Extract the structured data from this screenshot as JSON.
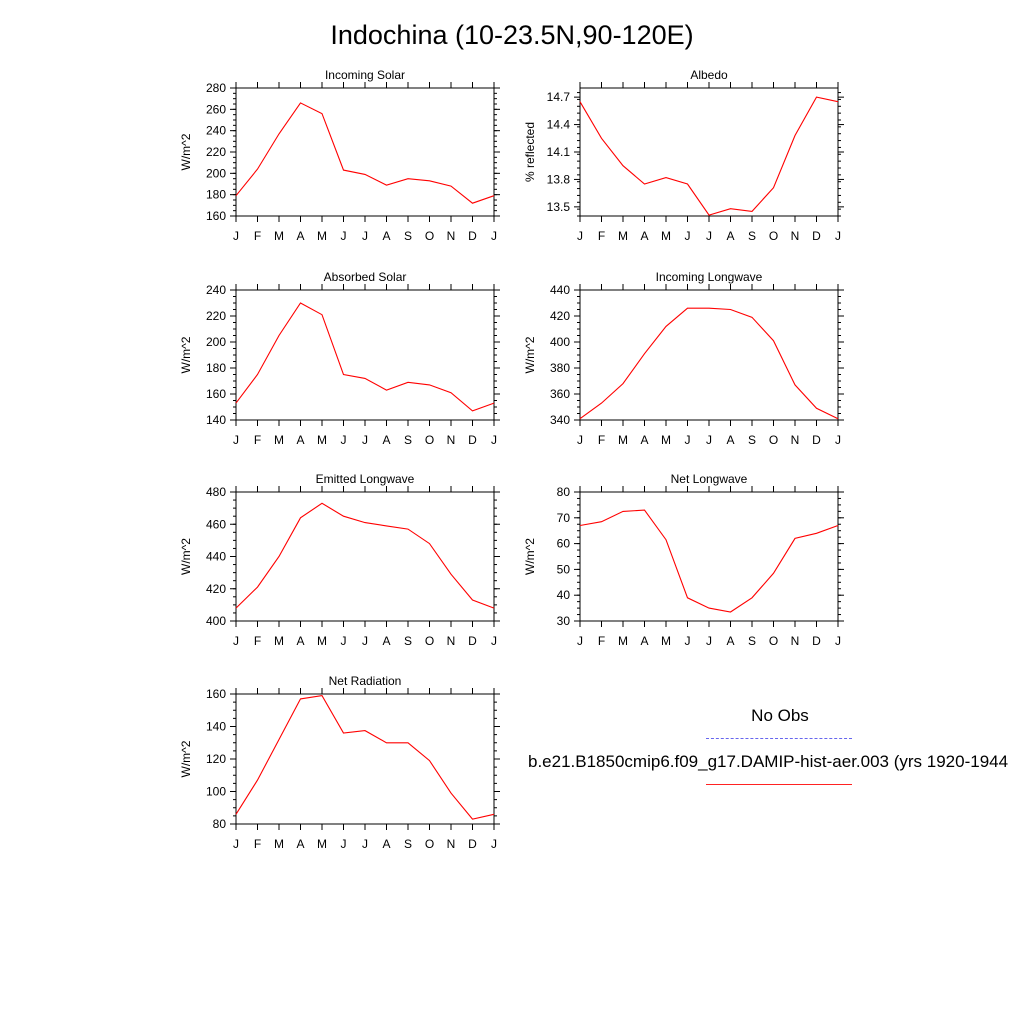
{
  "title": "Indochina (10-23.5N,90-120E)",
  "colors": {
    "model_line": "#ff0000",
    "obs_line": "#6a6aee",
    "axes": "#000000"
  },
  "legend": {
    "obs_label": "No Obs",
    "model_label": "b.e21.B1850cmip6.f09_g17.DAMIP-hist-aer.003 (yrs 1920-1944"
  },
  "chart_data": [
    {
      "type": "line",
      "title": "Incoming Solar",
      "ylabel": "W/m^2",
      "categories": [
        "J",
        "F",
        "M",
        "A",
        "M",
        "J",
        "J",
        "A",
        "S",
        "O",
        "N",
        "D",
        "J"
      ],
      "ylim": [
        160,
        280
      ],
      "yticks": [
        160,
        180,
        200,
        220,
        240,
        260,
        280
      ],
      "ytick_labels": [
        "160",
        "180",
        "200",
        "220",
        "240",
        "260",
        "280"
      ],
      "series": [
        {
          "values": [
            179,
            204,
            237,
            266,
            256,
            203,
            199,
            189,
            195,
            193,
            188,
            172,
            179
          ]
        }
      ]
    },
    {
      "type": "line",
      "title": "Albedo",
      "ylabel": "% reflected",
      "categories": [
        "J",
        "F",
        "M",
        "A",
        "M",
        "J",
        "J",
        "A",
        "S",
        "O",
        "N",
        "D",
        "J"
      ],
      "ylim": [
        13.4,
        14.8
      ],
      "yticks": [
        13.5,
        13.8,
        14.1,
        14.4,
        14.7
      ],
      "ytick_labels": [
        "13.5",
        "13.8",
        "14.1",
        "14.4",
        "14.7"
      ],
      "series": [
        {
          "values": [
            14.65,
            14.25,
            13.95,
            13.75,
            13.82,
            13.75,
            13.41,
            13.48,
            13.45,
            13.71,
            14.28,
            14.7,
            14.65
          ]
        }
      ]
    },
    {
      "type": "line",
      "title": "Absorbed Solar",
      "ylabel": "W/m^2",
      "categories": [
        "J",
        "F",
        "M",
        "A",
        "M",
        "J",
        "J",
        "A",
        "S",
        "O",
        "N",
        "D",
        "J"
      ],
      "ylim": [
        140,
        240
      ],
      "yticks": [
        140,
        160,
        180,
        200,
        220,
        240
      ],
      "ytick_labels": [
        "140",
        "160",
        "180",
        "200",
        "220",
        "240"
      ],
      "series": [
        {
          "values": [
            153,
            175,
            205,
            230,
            221,
            175,
            172,
            163,
            169,
            167,
            161,
            147,
            153
          ]
        }
      ]
    },
    {
      "type": "line",
      "title": "Incoming Longwave",
      "ylabel": "W/m^2",
      "categories": [
        "J",
        "F",
        "M",
        "A",
        "M",
        "J",
        "J",
        "A",
        "S",
        "O",
        "N",
        "D",
        "J"
      ],
      "ylim": [
        340,
        440
      ],
      "yticks": [
        340,
        360,
        380,
        400,
        420,
        440
      ],
      "ytick_labels": [
        "340",
        "360",
        "380",
        "400",
        "420",
        "440"
      ],
      "series": [
        {
          "values": [
            341,
            353,
            368,
            391,
            412,
            426,
            426,
            425,
            419,
            401,
            367,
            349,
            341
          ]
        }
      ]
    },
    {
      "type": "line",
      "title": "Emitted Longwave",
      "ylabel": "W/m^2",
      "categories": [
        "J",
        "F",
        "M",
        "A",
        "M",
        "J",
        "J",
        "A",
        "S",
        "O",
        "N",
        "D",
        "J"
      ],
      "ylim": [
        400,
        480
      ],
      "yticks": [
        400,
        420,
        440,
        460,
        480
      ],
      "ytick_labels": [
        "400",
        "420",
        "440",
        "460",
        "480"
      ],
      "series": [
        {
          "values": [
            408,
            421,
            440,
            464,
            473,
            465,
            461,
            459,
            457,
            448,
            429,
            413,
            408
          ]
        }
      ]
    },
    {
      "type": "line",
      "title": "Net Longwave",
      "ylabel": "W/m^2",
      "categories": [
        "J",
        "F",
        "M",
        "A",
        "M",
        "J",
        "J",
        "A",
        "S",
        "O",
        "N",
        "D",
        "J"
      ],
      "ylim": [
        30,
        80
      ],
      "yticks": [
        30,
        40,
        50,
        60,
        70,
        80
      ],
      "ytick_labels": [
        "30",
        "40",
        "50",
        "60",
        "70",
        "80"
      ],
      "series": [
        {
          "values": [
            67,
            68.5,
            72.5,
            73,
            61.5,
            39,
            35,
            33.5,
            39,
            48.5,
            62,
            64,
            67
          ]
        }
      ]
    },
    {
      "type": "line",
      "title": "Net Radiation",
      "ylabel": "W/m^2",
      "categories": [
        "J",
        "F",
        "M",
        "A",
        "M",
        "J",
        "J",
        "A",
        "S",
        "O",
        "N",
        "D",
        "J"
      ],
      "ylim": [
        80,
        160
      ],
      "yticks": [
        80,
        100,
        120,
        140,
        160
      ],
      "ytick_labels": [
        "80",
        "100",
        "120",
        "140",
        "160"
      ],
      "series": [
        {
          "values": [
            86,
            107,
            132,
            157,
            159,
            136,
            137.5,
            130,
            130,
            119,
            99,
            83,
            86
          ]
        }
      ]
    }
  ]
}
